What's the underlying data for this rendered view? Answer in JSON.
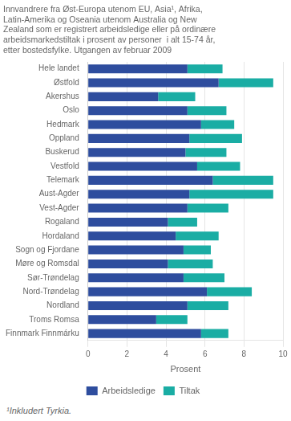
{
  "chart_data": {
    "type": "bar",
    "orientation": "horizontal",
    "stacked": true,
    "title": [
      "Innvandrere fra Øst-Europa utenom EU, Asia¹, Afrika,",
      "Latin-Amerika og Oseania utenom Australia og New",
      "Zealand som er registrert arbeidsledige eller på ordinære",
      "arbeidsmarkedstiltak i prosent av personer  i alt 15-74 år,",
      "etter bostedsfylke. Utgangen av februar 2009"
    ],
    "footnote": "¹Inkludert Tyrkia.",
    "categories": [
      "Hele landet",
      "Østfold",
      "Akershus",
      "Oslo",
      "Hedmark",
      "Oppland",
      "Buskerud",
      "Vestfold",
      "Telemark",
      "Aust-Agder",
      "Vest-Agder",
      "Rogaland",
      "Hordaland",
      "Sogn og Fjordane",
      "Møre og Romsdal",
      "Sør-Trøndelag",
      "Nord-Trøndelag",
      "Nordland",
      "Troms Romsa",
      "Finnmark Finnmárku"
    ],
    "series": [
      {
        "name": "Arbeidsledige",
        "color": "#2e4d9e",
        "values": [
          5.1,
          6.7,
          3.6,
          5.1,
          5.8,
          5.2,
          5.0,
          5.6,
          6.4,
          5.2,
          5.1,
          4.1,
          4.5,
          4.9,
          4.1,
          4.9,
          6.1,
          5.1,
          3.5,
          5.8
        ]
      },
      {
        "name": "Tiltak",
        "color": "#1aada4",
        "values": [
          1.8,
          2.8,
          1.9,
          2.0,
          1.7,
          2.7,
          2.1,
          2.2,
          3.1,
          4.3,
          2.1,
          1.5,
          2.2,
          1.4,
          2.3,
          2.1,
          2.3,
          2.1,
          1.6,
          1.4
        ]
      }
    ],
    "xlabel": "Prosent",
    "xlim": [
      0,
      10
    ],
    "xticks": [
      0,
      2,
      4,
      6,
      8,
      10
    ],
    "grid": true,
    "legend": "bottom"
  }
}
